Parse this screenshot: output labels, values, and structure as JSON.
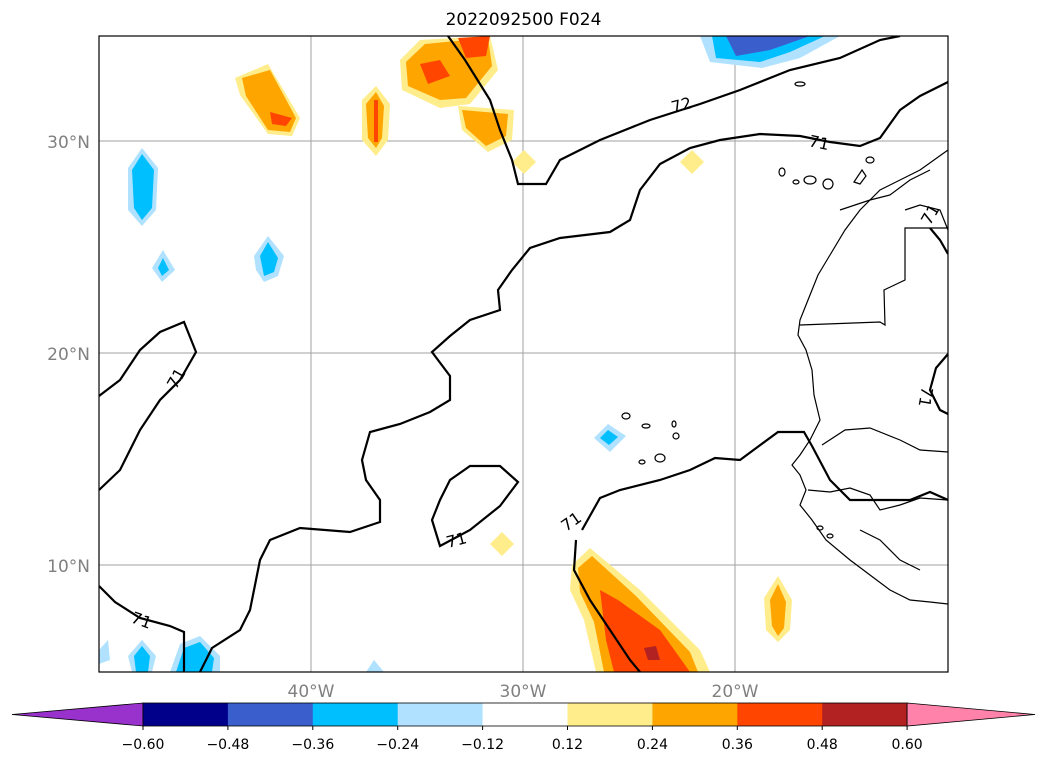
{
  "title": "2022092500 F024",
  "map": {
    "lat_labels": [
      "30°N",
      "20°N",
      "10°N"
    ],
    "lon_labels": [
      "40°W",
      "30°W",
      "20°W"
    ],
    "contour_level_labels": [
      "72",
      "71",
      "71",
      "71",
      "71",
      "71",
      "71",
      "71"
    ]
  },
  "colorbar": {
    "tick_labels": [
      "−0.60",
      "−0.48",
      "−0.36",
      "−0.24",
      "−0.12",
      "0.12",
      "0.24",
      "0.36",
      "0.48",
      "0.60"
    ],
    "colors": [
      "#9932cc",
      "#00008b",
      "#3a5fcd",
      "#00bfff",
      "#b0e2ff",
      "#ffffff",
      "#ffec8b",
      "#ffa500",
      "#ff4500",
      "#b22222",
      "#ff82ab"
    ]
  }
}
